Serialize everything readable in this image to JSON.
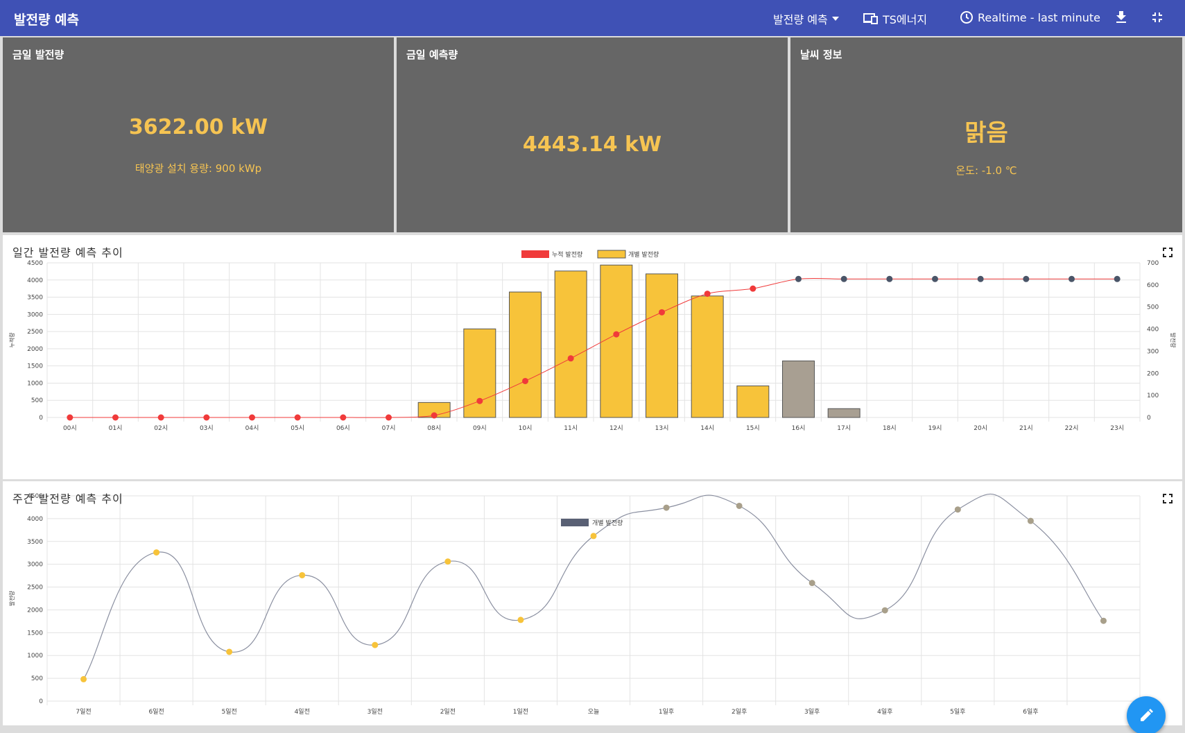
{
  "header": {
    "title": "발전량 예측",
    "menu_label": "발전량 예측",
    "company_label": "TS에너지",
    "time_range_label": "Realtime - last minute",
    "download_icon": "download-icon",
    "collapse_icon": "collapse-icon"
  },
  "panels": [
    {
      "title": "금일 발전량",
      "value": "3622.00 kW",
      "sub": "태양광 설치 용량: 900 kWp"
    },
    {
      "title": "금일 예측량",
      "value": "4443.14 kW",
      "sub": ""
    },
    {
      "title": "날씨 정보",
      "value": "맑음",
      "sub": "온도: -1.0 ℃"
    }
  ],
  "daily": {
    "title": "일간 발전량 예측 추이",
    "fullscreen_icon": "fullscreen-icon",
    "chart_data": {
      "type": "bar",
      "categories": [
        "00시",
        "01시",
        "02시",
        "03시",
        "04시",
        "05시",
        "06시",
        "07시",
        "08시",
        "09시",
        "10시",
        "11시",
        "12시",
        "13시",
        "14시",
        "15시",
        "16시",
        "17시",
        "18시",
        "19시",
        "20시",
        "21시",
        "22시",
        "23시"
      ],
      "series": [
        {
          "name": "누적 발전량",
          "type": "line",
          "axis": "left",
          "color": "#f03a3a",
          "forecast_color": "#4a5568",
          "values": [
            0,
            0,
            0,
            0,
            0,
            0,
            0,
            0,
            60,
            480,
            1060,
            1720,
            2420,
            3060,
            3600,
            3750,
            4030,
            4030,
            4030,
            4030,
            4030,
            4030,
            4030,
            4030
          ],
          "forecast_from_index": 16
        },
        {
          "name": "개별 발전량",
          "type": "bar",
          "axis": "right",
          "color": "#f7c33a",
          "forecast_color": "#a89f92",
          "values": [
            0,
            0,
            0,
            0,
            0,
            0,
            0,
            0,
            68,
            401,
            568,
            663,
            690,
            650,
            550,
            143,
            256,
            40,
            0,
            0,
            0,
            0,
            0,
            0
          ],
          "forecast_from_index": 16
        }
      ],
      "left_ylim": [
        0,
        4500
      ],
      "left_ticks": [
        0,
        500,
        1000,
        1500,
        2000,
        2500,
        3000,
        3500,
        4000,
        4500
      ],
      "right_ylim": [
        0,
        700
      ],
      "right_ticks": [
        0,
        100,
        200,
        300,
        400,
        500,
        600,
        700
      ],
      "left_ylabel": "누적량",
      "right_ylabel": "발전량",
      "legend": "top-center",
      "grid": true
    }
  },
  "weekly": {
    "title": "주간 발전량 예측 추이",
    "fullscreen_icon": "fullscreen-icon",
    "chart_data": {
      "type": "line",
      "categories": [
        "7일전",
        "6일전",
        "5일전",
        "4일전",
        "3일전",
        "2일전",
        "1일전",
        "오늘",
        "1일후",
        "2일후",
        "3일후",
        "4일후",
        "5일후",
        "6일후",
        ""
      ],
      "series": [
        {
          "name": "개별 발전량",
          "color": "#8a8fa0",
          "values": [
            480,
            3260,
            1080,
            2760,
            1230,
            3060,
            1780,
            3620,
            4240,
            4280,
            2590,
            1990,
            4200,
            3950,
            1760
          ],
          "point_colors": [
            "#f7c33a",
            "#f7c33a",
            "#f7c33a",
            "#f7c33a",
            "#f7c33a",
            "#f7c33a",
            "#f7c33a",
            "#f7c33a",
            "#a89f8a",
            "#a89f8a",
            "#a89f8a",
            "#a89f8a",
            "#a89f8a",
            "#a89f8a",
            "#a89f8a"
          ]
        }
      ],
      "ylim": [
        0,
        4500
      ],
      "yticks": [
        0,
        500,
        1000,
        1500,
        2000,
        2500,
        3000,
        3500,
        4000,
        4500
      ],
      "ylabel": "발전량",
      "legend_color": "#596074",
      "legend": "top-center",
      "grid": true
    }
  },
  "fab": {
    "icon": "edit-icon"
  }
}
